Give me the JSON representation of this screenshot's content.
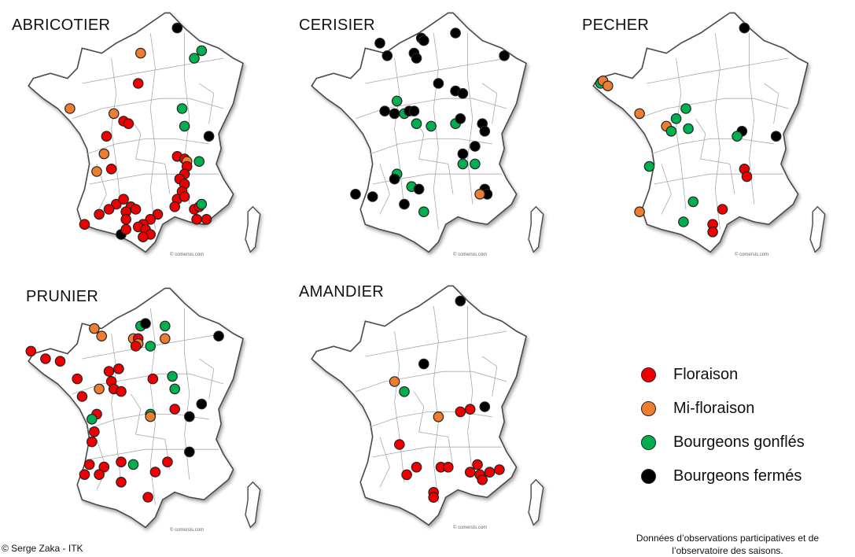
{
  "colors": {
    "floraison": "#ee0000",
    "mi_floraison": "#ed7d31",
    "bourgeons_gonfles": "#00b050",
    "bourgeons_fermes": "#000000"
  },
  "maps": [
    {
      "title": "ABRICOTIER",
      "credit": "© comersis.com",
      "observations": [
        [
          "fermes",
          0.63,
          0.08
        ],
        [
          "mi",
          0.48,
          0.18
        ],
        [
          "gonfles",
          0.7,
          0.2
        ],
        [
          "gonfles",
          0.73,
          0.17
        ],
        [
          "rouge",
          0.47,
          0.3
        ],
        [
          "mi",
          0.19,
          0.4
        ],
        [
          "mi",
          0.37,
          0.42
        ],
        [
          "rouge",
          0.41,
          0.45
        ],
        [
          "rouge",
          0.43,
          0.46
        ],
        [
          "gonfles",
          0.65,
          0.4
        ],
        [
          "gonfles",
          0.66,
          0.47
        ],
        [
          "rouge",
          0.34,
          0.51
        ],
        [
          "fermes",
          0.76,
          0.51
        ],
        [
          "mi",
          0.33,
          0.58
        ],
        [
          "rouge",
          0.36,
          0.64
        ],
        [
          "mi",
          0.3,
          0.65
        ],
        [
          "rouge",
          0.63,
          0.59
        ],
        [
          "rouge",
          0.66,
          0.6
        ],
        [
          "mi",
          0.67,
          0.61
        ],
        [
          "rouge",
          0.67,
          0.63
        ],
        [
          "gonfles",
          0.72,
          0.61
        ],
        [
          "rouge",
          0.66,
          0.66
        ],
        [
          "rouge",
          0.64,
          0.68
        ],
        [
          "rouge",
          0.66,
          0.7
        ],
        [
          "rouge",
          0.65,
          0.73
        ],
        [
          "rouge",
          0.63,
          0.76
        ],
        [
          "rouge",
          0.66,
          0.75
        ],
        [
          "rouge",
          0.62,
          0.79
        ],
        [
          "rouge",
          0.7,
          0.8
        ],
        [
          "rouge",
          0.72,
          0.79
        ],
        [
          "gonfles",
          0.73,
          0.78
        ],
        [
          "rouge",
          0.71,
          0.84
        ],
        [
          "rouge",
          0.75,
          0.84
        ],
        [
          "rouge",
          0.38,
          0.78
        ],
        [
          "rouge",
          0.41,
          0.76
        ],
        [
          "rouge",
          0.44,
          0.79
        ],
        [
          "rouge",
          0.46,
          0.8
        ],
        [
          "rouge",
          0.42,
          0.81
        ],
        [
          "rouge",
          0.35,
          0.8
        ],
        [
          "rouge",
          0.31,
          0.82
        ],
        [
          "rouge",
          0.25,
          0.86
        ],
        [
          "rouge",
          0.55,
          0.82
        ],
        [
          "rouge",
          0.52,
          0.84
        ],
        [
          "rouge",
          0.49,
          0.86
        ],
        [
          "rouge",
          0.42,
          0.84
        ],
        [
          "rouge",
          0.47,
          0.87
        ],
        [
          "rouge",
          0.5,
          0.88
        ],
        [
          "rouge",
          0.52,
          0.9
        ],
        [
          "rouge",
          0.49,
          0.91
        ],
        [
          "fermes",
          0.4,
          0.9
        ],
        [
          "rouge",
          0.42,
          0.88
        ]
      ]
    },
    {
      "title": "CERISIER",
      "credit": "© comersis.com",
      "observations": [
        [
          "fermes",
          0.47,
          0.12
        ],
        [
          "fermes",
          0.48,
          0.13
        ],
        [
          "fermes",
          0.61,
          0.1
        ],
        [
          "fermes",
          0.3,
          0.14
        ],
        [
          "fermes",
          0.33,
          0.19
        ],
        [
          "fermes",
          0.44,
          0.18
        ],
        [
          "fermes",
          0.45,
          0.2
        ],
        [
          "fermes",
          0.81,
          0.19
        ],
        [
          "fermes",
          0.54,
          0.3
        ],
        [
          "fermes",
          0.61,
          0.33
        ],
        [
          "fermes",
          0.64,
          0.34
        ],
        [
          "gonfles",
          0.37,
          0.37
        ],
        [
          "fermes",
          0.32,
          0.41
        ],
        [
          "fermes",
          0.36,
          0.42
        ],
        [
          "gonfles",
          0.4,
          0.42
        ],
        [
          "fermes",
          0.42,
          0.41
        ],
        [
          "fermes",
          0.44,
          0.41
        ],
        [
          "gonfles",
          0.45,
          0.46
        ],
        [
          "gonfles",
          0.51,
          0.47
        ],
        [
          "gonfles",
          0.61,
          0.46
        ],
        [
          "fermes",
          0.63,
          0.44
        ],
        [
          "fermes",
          0.72,
          0.46
        ],
        [
          "fermes",
          0.73,
          0.49
        ],
        [
          "fermes",
          0.69,
          0.55
        ],
        [
          "fermes",
          0.64,
          0.58
        ],
        [
          "gonfles",
          0.64,
          0.62
        ],
        [
          "gonfles",
          0.69,
          0.62
        ],
        [
          "gonfles",
          0.37,
          0.66
        ],
        [
          "fermes",
          0.36,
          0.68
        ],
        [
          "gonfles",
          0.43,
          0.71
        ],
        [
          "fermes",
          0.46,
          0.72
        ],
        [
          "fermes",
          0.2,
          0.74
        ],
        [
          "fermes",
          0.27,
          0.75
        ],
        [
          "fermes",
          0.4,
          0.78
        ],
        [
          "gonfles",
          0.48,
          0.81
        ],
        [
          "fermes",
          0.73,
          0.72
        ],
        [
          "fermes",
          0.74,
          0.74
        ],
        [
          "mi",
          0.71,
          0.74
        ]
      ]
    },
    {
      "title": "PECHER",
      "credit": "© comersis.com",
      "observations": [
        [
          "fermes",
          0.64,
          0.08
        ],
        [
          "gonfles",
          0.05,
          0.3
        ],
        [
          "mi",
          0.06,
          0.29
        ],
        [
          "mi",
          0.08,
          0.31
        ],
        [
          "mi",
          0.21,
          0.42
        ],
        [
          "gonfles",
          0.4,
          0.4
        ],
        [
          "gonfles",
          0.36,
          0.44
        ],
        [
          "mi",
          0.32,
          0.47
        ],
        [
          "gonfles",
          0.34,
          0.49
        ],
        [
          "gonfles",
          0.41,
          0.48
        ],
        [
          "fermes",
          0.63,
          0.49
        ],
        [
          "gonfles",
          0.61,
          0.51
        ],
        [
          "fermes",
          0.77,
          0.51
        ],
        [
          "gonfles",
          0.25,
          0.63
        ],
        [
          "rouge",
          0.64,
          0.64
        ],
        [
          "rouge",
          0.65,
          0.67
        ],
        [
          "gonfles",
          0.43,
          0.77
        ],
        [
          "rouge",
          0.55,
          0.8
        ],
        [
          "mi",
          0.21,
          0.81
        ],
        [
          "gonfles",
          0.39,
          0.85
        ],
        [
          "rouge",
          0.51,
          0.86
        ],
        [
          "rouge",
          0.51,
          0.89
        ]
      ]
    },
    {
      "title": "PRUNIER",
      "credit": "© comersis.com",
      "observations": [
        [
          "gonfles",
          0.48,
          0.17
        ],
        [
          "fermes",
          0.5,
          0.16
        ],
        [
          "gonfles",
          0.58,
          0.17
        ],
        [
          "mi",
          0.29,
          0.18
        ],
        [
          "mi",
          0.32,
          0.21
        ],
        [
          "mi",
          0.45,
          0.22
        ],
        [
          "rouge",
          0.47,
          0.22
        ],
        [
          "mi",
          0.47,
          0.24
        ],
        [
          "rouge",
          0.46,
          0.25
        ],
        [
          "gonfles",
          0.52,
          0.25
        ],
        [
          "mi",
          0.58,
          0.22
        ],
        [
          "fermes",
          0.8,
          0.21
        ],
        [
          "rouge",
          0.03,
          0.27
        ],
        [
          "rouge",
          0.09,
          0.3
        ],
        [
          "rouge",
          0.15,
          0.31
        ],
        [
          "rouge",
          0.35,
          0.35
        ],
        [
          "rouge",
          0.39,
          0.34
        ],
        [
          "rouge",
          0.22,
          0.38
        ],
        [
          "rouge",
          0.36,
          0.39
        ],
        [
          "rouge",
          0.53,
          0.38
        ],
        [
          "gonfles",
          0.61,
          0.37
        ],
        [
          "mi",
          0.31,
          0.42
        ],
        [
          "rouge",
          0.37,
          0.42
        ],
        [
          "rouge",
          0.4,
          0.43
        ],
        [
          "rouge",
          0.24,
          0.45
        ],
        [
          "gonfles",
          0.62,
          0.42
        ],
        [
          "fermes",
          0.73,
          0.48
        ],
        [
          "rouge",
          0.62,
          0.5
        ],
        [
          "gonfles",
          0.52,
          0.52
        ],
        [
          "mi",
          0.52,
          0.53
        ],
        [
          "fermes",
          0.68,
          0.53
        ],
        [
          "rouge",
          0.3,
          0.52
        ],
        [
          "gonfles",
          0.28,
          0.54
        ],
        [
          "rouge",
          0.29,
          0.59
        ],
        [
          "rouge",
          0.28,
          0.63
        ],
        [
          "fermes",
          0.68,
          0.67
        ],
        [
          "rouge",
          0.27,
          0.72
        ],
        [
          "rouge",
          0.33,
          0.73
        ],
        [
          "rouge",
          0.4,
          0.71
        ],
        [
          "gonfles",
          0.45,
          0.72
        ],
        [
          "rouge",
          0.59,
          0.71
        ],
        [
          "rouge",
          0.31,
          0.76
        ],
        [
          "rouge",
          0.25,
          0.76
        ],
        [
          "rouge",
          0.4,
          0.79
        ],
        [
          "rouge",
          0.54,
          0.75
        ],
        [
          "rouge",
          0.51,
          0.85
        ]
      ]
    },
    {
      "title": "AMANDIER",
      "credit": "© comersis.com",
      "observations": [
        [
          "fermes",
          0.63,
          0.08
        ],
        [
          "fermes",
          0.48,
          0.33
        ],
        [
          "mi",
          0.36,
          0.4
        ],
        [
          "gonfles",
          0.4,
          0.44
        ],
        [
          "mi",
          0.54,
          0.54
        ],
        [
          "rouge",
          0.63,
          0.52
        ],
        [
          "rouge",
          0.67,
          0.51
        ],
        [
          "fermes",
          0.73,
          0.5
        ],
        [
          "rouge",
          0.38,
          0.65
        ],
        [
          "rouge",
          0.45,
          0.74
        ],
        [
          "rouge",
          0.41,
          0.77
        ],
        [
          "rouge",
          0.55,
          0.74
        ],
        [
          "rouge",
          0.58,
          0.74
        ],
        [
          "rouge",
          0.7,
          0.73
        ],
        [
          "rouge",
          0.67,
          0.76
        ],
        [
          "rouge",
          0.71,
          0.77
        ],
        [
          "rouge",
          0.75,
          0.76
        ],
        [
          "rouge",
          0.72,
          0.79
        ],
        [
          "rouge",
          0.79,
          0.75
        ],
        [
          "rouge",
          0.52,
          0.84
        ],
        [
          "rouge",
          0.52,
          0.86
        ]
      ]
    }
  ],
  "legend": [
    {
      "key": "floraison",
      "label": "Floraison"
    },
    {
      "key": "mi_floraison",
      "label": "Mi-floraison"
    },
    {
      "key": "bourgeons_gonfles",
      "label": "Bourgeons gonflés"
    },
    {
      "key": "bourgeons_fermes",
      "label": "Bourgeons fermés"
    }
  ],
  "footer": {
    "left": "© Serge Zaka - ITK",
    "right_line1": "Données d’observations participatives et de",
    "right_line2": "l’observatoire des saisons."
  }
}
